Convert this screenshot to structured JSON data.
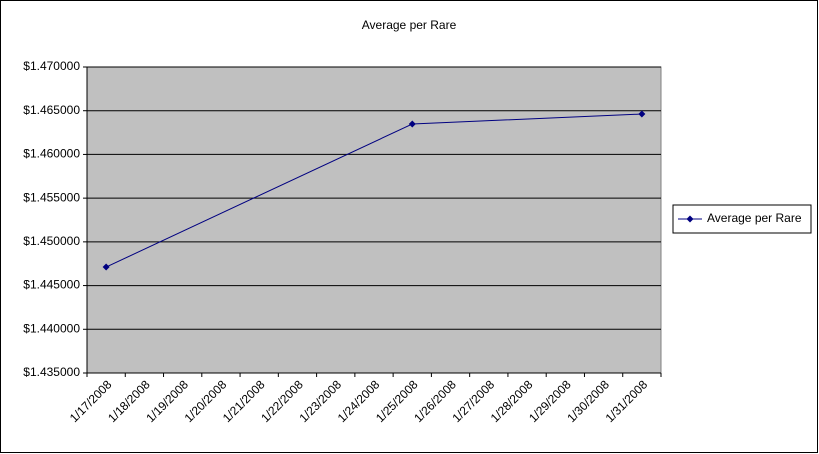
{
  "chart_data": {
    "type": "line",
    "title": "Average per Rare",
    "x": [
      "1/17/2008",
      "1/25/2008",
      "1/31/2008"
    ],
    "xticks": [
      "1/17/2008",
      "1/18/2008",
      "1/19/2008",
      "1/20/2008",
      "1/21/2008",
      "1/22/2008",
      "1/23/2008",
      "1/24/2008",
      "1/25/2008",
      "1/26/2008",
      "1/27/2008",
      "1/28/2008",
      "1/29/2008",
      "1/30/2008",
      "1/31/2008"
    ],
    "series": [
      {
        "name": "Average per Rare",
        "color": "#000080",
        "values": [
          1.44712,
          1.46348,
          1.46462
        ]
      }
    ],
    "ylim": [
      1.435,
      1.47
    ],
    "yticks": [
      {
        "value": 1.435,
        "label": "$1.435000"
      },
      {
        "value": 1.44,
        "label": "$1.440000"
      },
      {
        "value": 1.445,
        "label": "$1.445000"
      },
      {
        "value": 1.45,
        "label": "$1.450000"
      },
      {
        "value": 1.455,
        "label": "$1.455000"
      },
      {
        "value": 1.46,
        "label": "$1.460000"
      },
      {
        "value": 1.465,
        "label": "$1.465000"
      },
      {
        "value": 1.47,
        "label": "$1.470000"
      }
    ],
    "grid": true,
    "legend": "right",
    "plot_background": "#c0c0c0"
  }
}
